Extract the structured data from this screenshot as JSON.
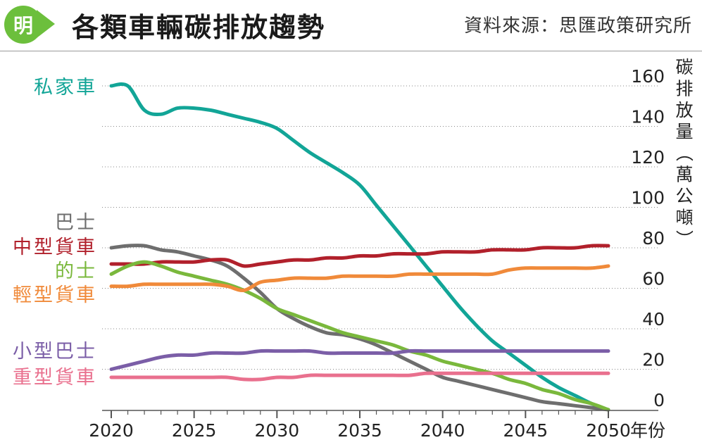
{
  "header": {
    "logo_char": "明",
    "title": "各類車輛碳排放趨勢",
    "source": "資料來源：思匯政策研究所"
  },
  "chart_data": {
    "type": "line",
    "ylabel": "碳排放量（萬公噸）",
    "xlabel": "年份",
    "xlim": [
      2020,
      2050
    ],
    "ylim": [
      0,
      160
    ],
    "x_ticks": [
      2020,
      2025,
      2030,
      2035,
      2040,
      2045,
      2050
    ],
    "y_ticks": [
      0,
      20,
      40,
      60,
      80,
      100,
      120,
      140,
      160
    ],
    "grid": "horizontal dotted",
    "legend": "left, labels beside line starts",
    "series": [
      {
        "name": "私家車",
        "color": "#12a597",
        "points": [
          [
            2020,
            160
          ],
          [
            2021,
            160
          ],
          [
            2022,
            148
          ],
          [
            2023,
            146
          ],
          [
            2024,
            149
          ],
          [
            2025,
            149
          ],
          [
            2026,
            148
          ],
          [
            2027,
            146
          ],
          [
            2028,
            144
          ],
          [
            2029,
            142
          ],
          [
            2030,
            139
          ],
          [
            2031,
            133
          ],
          [
            2032,
            127
          ],
          [
            2033,
            122
          ],
          [
            2034,
            117
          ],
          [
            2035,
            111
          ],
          [
            2036,
            101
          ],
          [
            2037,
            91
          ],
          [
            2038,
            81
          ],
          [
            2039,
            71
          ],
          [
            2040,
            61
          ],
          [
            2041,
            51
          ],
          [
            2042,
            42
          ],
          [
            2043,
            34
          ],
          [
            2044,
            28
          ],
          [
            2045,
            22
          ],
          [
            2046,
            16
          ],
          [
            2047,
            11
          ],
          [
            2048,
            7
          ],
          [
            2049,
            3
          ],
          [
            2050,
            0
          ]
        ]
      },
      {
        "name": "巴士",
        "color": "#6e6e6e",
        "points": [
          [
            2020,
            80
          ],
          [
            2021,
            81
          ],
          [
            2022,
            81
          ],
          [
            2023,
            79
          ],
          [
            2024,
            78
          ],
          [
            2025,
            76
          ],
          [
            2026,
            74
          ],
          [
            2027,
            71
          ],
          [
            2028,
            65
          ],
          [
            2029,
            58
          ],
          [
            2030,
            50
          ],
          [
            2031,
            45
          ],
          [
            2032,
            41
          ],
          [
            2033,
            38
          ],
          [
            2034,
            37
          ],
          [
            2035,
            35
          ],
          [
            2036,
            32
          ],
          [
            2037,
            28
          ],
          [
            2038,
            24
          ],
          [
            2039,
            20
          ],
          [
            2040,
            16
          ],
          [
            2041,
            14
          ],
          [
            2042,
            12
          ],
          [
            2043,
            10
          ],
          [
            2044,
            8
          ],
          [
            2045,
            6
          ],
          [
            2046,
            4
          ],
          [
            2047,
            3
          ],
          [
            2048,
            2
          ],
          [
            2049,
            1
          ],
          [
            2050,
            0
          ]
        ]
      },
      {
        "name": "中型貨車",
        "color": "#b1202b",
        "points": [
          [
            2020,
            72
          ],
          [
            2021,
            72
          ],
          [
            2022,
            72
          ],
          [
            2023,
            73
          ],
          [
            2024,
            73
          ],
          [
            2025,
            73
          ],
          [
            2026,
            74
          ],
          [
            2027,
            74
          ],
          [
            2028,
            71
          ],
          [
            2029,
            72
          ],
          [
            2030,
            73
          ],
          [
            2031,
            74
          ],
          [
            2032,
            74
          ],
          [
            2033,
            75
          ],
          [
            2034,
            75
          ],
          [
            2035,
            76
          ],
          [
            2036,
            76
          ],
          [
            2037,
            77
          ],
          [
            2038,
            77
          ],
          [
            2039,
            77
          ],
          [
            2040,
            78
          ],
          [
            2041,
            78
          ],
          [
            2042,
            78
          ],
          [
            2043,
            79
          ],
          [
            2044,
            79
          ],
          [
            2045,
            79
          ],
          [
            2046,
            80
          ],
          [
            2047,
            80
          ],
          [
            2048,
            80
          ],
          [
            2049,
            81
          ],
          [
            2050,
            81
          ]
        ]
      },
      {
        "name": "的士",
        "color": "#7ab83c",
        "points": [
          [
            2020,
            67
          ],
          [
            2021,
            71
          ],
          [
            2022,
            73
          ],
          [
            2023,
            71
          ],
          [
            2024,
            68
          ],
          [
            2025,
            66
          ],
          [
            2026,
            64
          ],
          [
            2027,
            62
          ],
          [
            2028,
            59
          ],
          [
            2029,
            55
          ],
          [
            2030,
            50
          ],
          [
            2031,
            47
          ],
          [
            2032,
            44
          ],
          [
            2033,
            41
          ],
          [
            2034,
            38
          ],
          [
            2035,
            36
          ],
          [
            2036,
            34
          ],
          [
            2037,
            32
          ],
          [
            2038,
            29
          ],
          [
            2039,
            27
          ],
          [
            2040,
            24
          ],
          [
            2041,
            22
          ],
          [
            2042,
            20
          ],
          [
            2043,
            18
          ],
          [
            2044,
            15
          ],
          [
            2045,
            13
          ],
          [
            2046,
            10
          ],
          [
            2047,
            8
          ],
          [
            2048,
            5
          ],
          [
            2049,
            3
          ],
          [
            2050,
            0
          ]
        ]
      },
      {
        "name": "輕型貨車",
        "color": "#f08a3a",
        "points": [
          [
            2020,
            61
          ],
          [
            2021,
            61
          ],
          [
            2022,
            62
          ],
          [
            2023,
            62
          ],
          [
            2024,
            62
          ],
          [
            2025,
            62
          ],
          [
            2026,
            62
          ],
          [
            2027,
            61
          ],
          [
            2028,
            59
          ],
          [
            2029,
            63
          ],
          [
            2030,
            64
          ],
          [
            2031,
            65
          ],
          [
            2032,
            65
          ],
          [
            2033,
            65
          ],
          [
            2034,
            66
          ],
          [
            2035,
            66
          ],
          [
            2036,
            66
          ],
          [
            2037,
            66
          ],
          [
            2038,
            67
          ],
          [
            2039,
            67
          ],
          [
            2040,
            67
          ],
          [
            2041,
            67
          ],
          [
            2042,
            67
          ],
          [
            2043,
            67
          ],
          [
            2044,
            69
          ],
          [
            2045,
            70
          ],
          [
            2046,
            70
          ],
          [
            2047,
            70
          ],
          [
            2048,
            70
          ],
          [
            2049,
            70
          ],
          [
            2050,
            71
          ]
        ]
      },
      {
        "name": "小型巴士",
        "color": "#7b5ea7",
        "points": [
          [
            2020,
            20
          ],
          [
            2021,
            22
          ],
          [
            2022,
            24
          ],
          [
            2023,
            26
          ],
          [
            2024,
            27
          ],
          [
            2025,
            27
          ],
          [
            2026,
            28
          ],
          [
            2027,
            28
          ],
          [
            2028,
            28
          ],
          [
            2029,
            29
          ],
          [
            2030,
            29
          ],
          [
            2031,
            29
          ],
          [
            2032,
            29
          ],
          [
            2033,
            28
          ],
          [
            2034,
            28
          ],
          [
            2035,
            28
          ],
          [
            2036,
            28
          ],
          [
            2037,
            28
          ],
          [
            2038,
            29
          ],
          [
            2039,
            29
          ],
          [
            2040,
            29
          ],
          [
            2041,
            29
          ],
          [
            2042,
            29
          ],
          [
            2043,
            29
          ],
          [
            2044,
            29
          ],
          [
            2045,
            29
          ],
          [
            2046,
            29
          ],
          [
            2047,
            29
          ],
          [
            2048,
            29
          ],
          [
            2049,
            29
          ],
          [
            2050,
            29
          ]
        ]
      },
      {
        "name": "重型貨車",
        "color": "#e9708e",
        "points": [
          [
            2020,
            16
          ],
          [
            2021,
            16
          ],
          [
            2022,
            16
          ],
          [
            2023,
            16
          ],
          [
            2024,
            16
          ],
          [
            2025,
            16
          ],
          [
            2026,
            16
          ],
          [
            2027,
            16
          ],
          [
            2028,
            15
          ],
          [
            2029,
            15
          ],
          [
            2030,
            16
          ],
          [
            2031,
            16
          ],
          [
            2032,
            17
          ],
          [
            2033,
            17
          ],
          [
            2034,
            17
          ],
          [
            2035,
            17
          ],
          [
            2036,
            17
          ],
          [
            2037,
            17
          ],
          [
            2038,
            17
          ],
          [
            2039,
            18
          ],
          [
            2040,
            18
          ],
          [
            2041,
            18
          ],
          [
            2042,
            18
          ],
          [
            2043,
            18
          ],
          [
            2044,
            18
          ],
          [
            2045,
            18
          ],
          [
            2046,
            18
          ],
          [
            2047,
            18
          ],
          [
            2048,
            18
          ],
          [
            2049,
            18
          ],
          [
            2050,
            18
          ]
        ]
      }
    ]
  }
}
